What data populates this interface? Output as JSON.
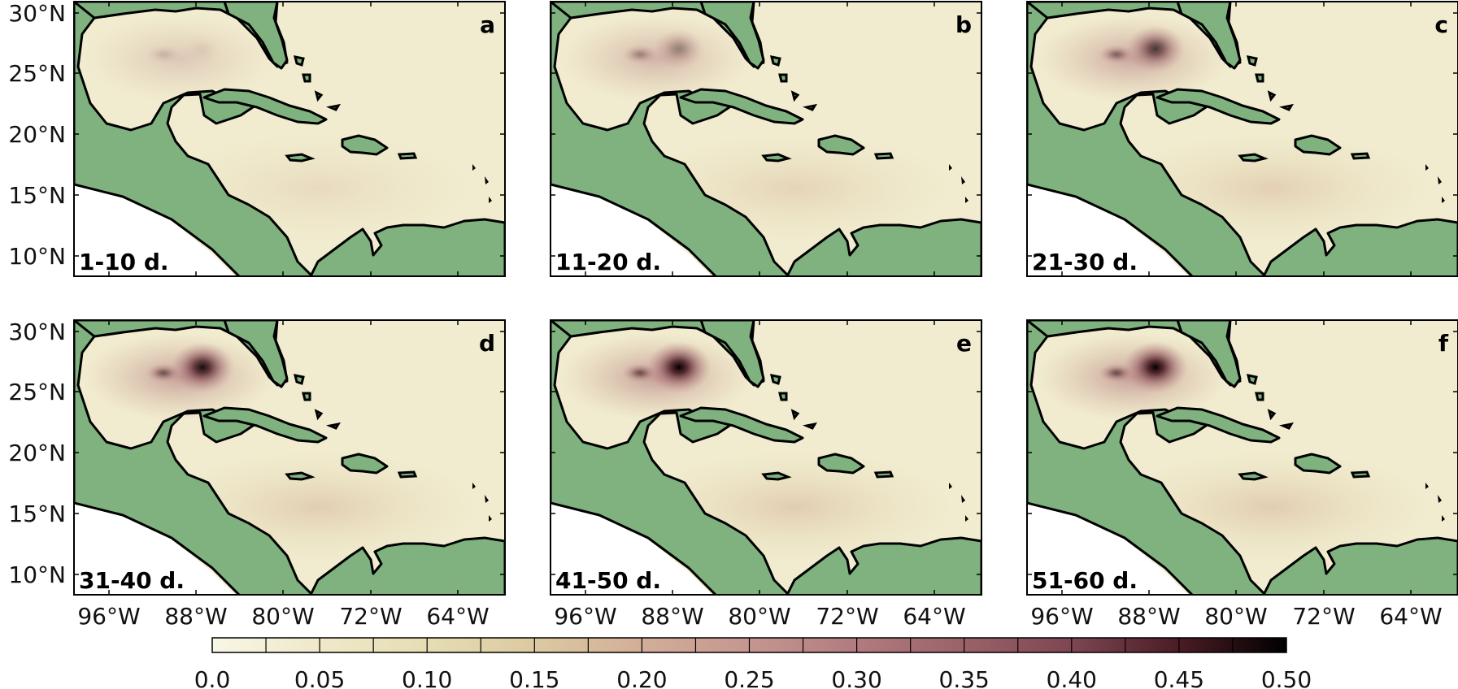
{
  "figure": {
    "layout": "2 rows x 3 columns of map panels with shared horizontal colorbar at bottom",
    "panels": [
      {
        "letter": "a",
        "period": "1-10 d.",
        "hotspot_intensity": 0.12
      },
      {
        "letter": "b",
        "period": "11-20 d.",
        "hotspot_intensity": 0.3
      },
      {
        "letter": "c",
        "period": "21-30 d.",
        "hotspot_intensity": 0.42
      },
      {
        "letter": "d",
        "period": "31-40 d.",
        "hotspot_intensity": 0.48
      },
      {
        "letter": "e",
        "period": "41-50 d.",
        "hotspot_intensity": 0.5
      },
      {
        "letter": "f",
        "period": "51-60 d.",
        "hotspot_intensity": 0.5
      }
    ],
    "lat_ticks": [
      "30°N",
      "25°N",
      "20°N",
      "15°N",
      "10°N"
    ],
    "lon_ticks": [
      "96°W",
      "88°W",
      "80°W",
      "72°W",
      "64°W"
    ],
    "colorbar": {
      "min": 0.0,
      "max": 0.5,
      "tick_labels": [
        "0.0",
        "0.05",
        "0.10",
        "0.15",
        "0.20",
        "0.25",
        "0.30",
        "0.35",
        "0.40",
        "0.45",
        "0.50"
      ],
      "colors": [
        "#f8f6e6",
        "#efe9c9",
        "#e6ddb2",
        "#dcc9a0",
        "#d2ae98",
        "#c59690",
        "#b17b7f",
        "#9a6268",
        "#7d4652",
        "#4a1c24",
        "#000000"
      ]
    },
    "land_color": "#7fb27f",
    "coast_color": "#000000"
  }
}
